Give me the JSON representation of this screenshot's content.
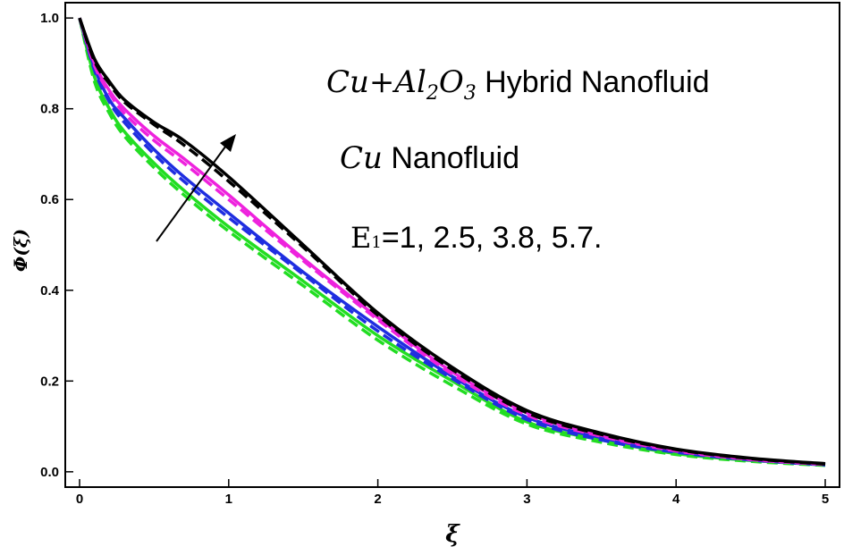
{
  "chart_data": {
    "type": "line",
    "xlabel": "ξ",
    "ylabel": "Φ(ξ)",
    "xlim": [
      0,
      5
    ],
    "ylim": [
      -0.02,
      1.02
    ],
    "x_ticks": [
      "0",
      "1",
      "2",
      "3",
      "4",
      "5"
    ],
    "y_ticks": [
      "0.0",
      "0.2",
      "0.4",
      "0.6",
      "0.8",
      "1.0"
    ],
    "x_tick_values": [
      0,
      1,
      2,
      3,
      4,
      5
    ],
    "y_tick_values": [
      0,
      0.2,
      0.4,
      0.6,
      0.8,
      1.0
    ],
    "grid": false,
    "x": [
      0,
      0.1,
      0.2,
      0.3,
      0.5,
      0.7,
      1.0,
      1.5,
      2.0,
      2.5,
      3.0,
      3.5,
      4.0,
      4.5,
      5.0
    ],
    "series": [
      {
        "color": "#22dd22",
        "style": "solid",
        "values": [
          1.0,
          0.87,
          0.8,
          0.75,
          0.68,
          0.62,
          0.54,
          0.42,
          0.3,
          0.2,
          0.11,
          0.07,
          0.04,
          0.025,
          0.015
        ]
      },
      {
        "color": "#22dd22",
        "style": "dashed",
        "values": [
          1.0,
          0.86,
          0.79,
          0.74,
          0.67,
          0.61,
          0.53,
          0.41,
          0.29,
          0.19,
          0.105,
          0.065,
          0.038,
          0.023,
          0.014
        ]
      },
      {
        "color": "#1f2ee0",
        "style": "solid",
        "values": [
          1.0,
          0.89,
          0.82,
          0.78,
          0.71,
          0.65,
          0.57,
          0.44,
          0.32,
          0.21,
          0.12,
          0.075,
          0.045,
          0.027,
          0.016
        ]
      },
      {
        "color": "#1f2ee0",
        "style": "dashed",
        "values": [
          1.0,
          0.885,
          0.815,
          0.77,
          0.7,
          0.64,
          0.56,
          0.435,
          0.31,
          0.205,
          0.115,
          0.07,
          0.043,
          0.026,
          0.015
        ]
      },
      {
        "color": "#ee22dd",
        "style": "solid",
        "values": [
          1.0,
          0.9,
          0.84,
          0.8,
          0.74,
          0.69,
          0.61,
          0.47,
          0.34,
          0.22,
          0.13,
          0.08,
          0.048,
          0.028,
          0.017
        ]
      },
      {
        "color": "#ee22dd",
        "style": "dashed",
        "values": [
          1.0,
          0.895,
          0.835,
          0.79,
          0.73,
          0.68,
          0.6,
          0.465,
          0.335,
          0.215,
          0.125,
          0.078,
          0.046,
          0.027,
          0.016
        ]
      },
      {
        "color": "#000000",
        "style": "solid",
        "values": [
          1.0,
          0.91,
          0.86,
          0.82,
          0.77,
          0.73,
          0.65,
          0.5,
          0.35,
          0.23,
          0.135,
          0.085,
          0.05,
          0.03,
          0.018
        ]
      },
      {
        "color": "#000000",
        "style": "dashed",
        "values": [
          1.0,
          0.905,
          0.855,
          0.815,
          0.765,
          0.72,
          0.64,
          0.495,
          0.345,
          0.225,
          0.13,
          0.082,
          0.049,
          0.029,
          0.017
        ]
      }
    ],
    "annotations": {
      "hybrid_prefix": "Cu+Al",
      "hybrid_sub1": "2",
      "hybrid_o": "O",
      "hybrid_sub2": "3",
      "hybrid_suffix": " Hybrid Nanofluid",
      "cu_prefix": "Cu",
      "cu_suffix": " Nanofluid",
      "param_symbol": "E",
      "param_sub": "1",
      "param_values": "=1, 2.5, 3.8, 5.7."
    }
  }
}
